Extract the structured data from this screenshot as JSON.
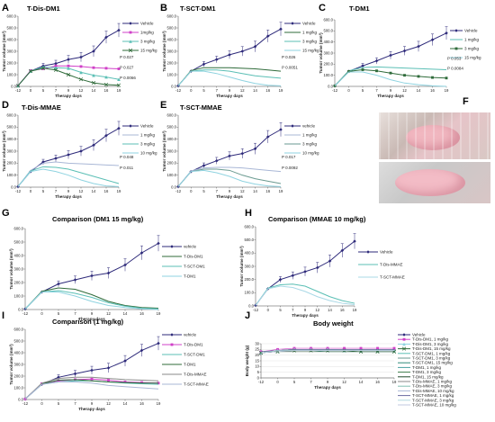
{
  "panels": [
    {
      "id": "A",
      "title": "T-Dis-DM1",
      "box": "A",
      "ylabel": "Tumor volume (mm³)",
      "xlabel": "Therapy days"
    },
    {
      "id": "B",
      "title": "T-SCT-DM1",
      "box": "B",
      "ylabel": "Tumor volume (mm³)",
      "xlabel": "Therapy days"
    },
    {
      "id": "C",
      "title": "T-DM1",
      "box": "C",
      "ylabel": "Tumor volume (mm³)",
      "xlabel": "Therapy days"
    },
    {
      "id": "D",
      "title": "T-Dis-MMAE",
      "box": "D",
      "ylabel": "Tumor volume (mm³)",
      "xlabel": "Therapy days"
    },
    {
      "id": "E",
      "title": "T-SCT-MMAE",
      "box": "E",
      "ylabel": "Tumor volume (mm³)",
      "xlabel": "Therapy days"
    },
    {
      "id": "G",
      "title": "Comparison (DM1 15 mg/kg)",
      "box": "G",
      "ylabel": "Tumor volume (mm³)",
      "xlabel": "Therapy days"
    },
    {
      "id": "H",
      "title": "Comparison (MMAE 10 mg/kg)",
      "box": "H",
      "ylabel": "Tumor volume (mm³)",
      "xlabel": "Therapy days"
    },
    {
      "id": "I",
      "title": "Comparison (1 mg/kg)",
      "box": "I",
      "ylabel": "Tumor volume (mm³)",
      "xlabel": "Therapy days"
    },
    {
      "id": "J",
      "title": "Body weight",
      "box": "J",
      "ylabel": "Body weight (g)",
      "xlabel": "Therapy days"
    }
  ],
  "photo_label": "F",
  "chart_data": [
    {
      "id": "A",
      "type": "line",
      "x": [
        -12,
        0,
        5,
        7,
        9,
        12,
        14,
        16,
        19
      ],
      "ylim": [
        0,
        600
      ],
      "yticks": [
        0,
        100,
        200,
        300,
        400,
        500,
        600
      ],
      "series": [
        {
          "name": "Vehicle",
          "color": "#2e2a7a",
          "marker": "diamond",
          "values": [
            5,
            130,
            175,
            195,
            230,
            250,
            300,
            420,
            480
          ]
        },
        {
          "name": "1mg/kg",
          "color": "#d040c8",
          "marker": "square",
          "values": [
            5,
            135,
            150,
            175,
            175,
            170,
            160,
            155,
            150
          ]
        },
        {
          "name": "3 mg/kg",
          "color": "#5bbfb5",
          "marker": "triangle",
          "values": [
            5,
            130,
            165,
            160,
            155,
            120,
            95,
            80,
            60
          ]
        },
        {
          "name": "15 mg/kg",
          "color": "#2f6b3a",
          "marker": "x",
          "values": [
            5,
            130,
            155,
            140,
            100,
            60,
            30,
            15,
            10
          ]
        }
      ],
      "annotations": [
        "P 0.027",
        "P 0.027",
        "P 0.0066"
      ]
    },
    {
      "id": "B",
      "type": "line",
      "x": [
        -12,
        0,
        5,
        7,
        9,
        12,
        14,
        16,
        19
      ],
      "ylim": [
        0,
        600
      ],
      "yticks": [
        0,
        100,
        200,
        300,
        400,
        500,
        600
      ],
      "series": [
        {
          "name": "Vehicle",
          "color": "#2e2a7a",
          "marker": "diamond",
          "values": [
            5,
            130,
            190,
            230,
            270,
            300,
            340,
            430,
            490
          ]
        },
        {
          "name": "1 mg/kg",
          "color": "#2f6b3a",
          "marker": "none",
          "values": [
            5,
            135,
            160,
            160,
            160,
            155,
            150,
            140,
            130
          ]
        },
        {
          "name": "3 mg/kg",
          "color": "#5bbfb5",
          "marker": "none",
          "values": [
            5,
            130,
            140,
            140,
            130,
            110,
            90,
            80,
            70
          ]
        },
        {
          "name": "15 mg/kg",
          "color": "#8fd3e0",
          "marker": "none",
          "values": [
            5,
            130,
            130,
            110,
            80,
            50,
            25,
            10,
            5
          ]
        }
      ],
      "annotations": [
        "P 0.026",
        "P 0.0051"
      ]
    },
    {
      "id": "C",
      "type": "line",
      "x": [
        -12,
        0,
        5,
        7,
        9,
        12,
        14,
        16,
        19
      ],
      "ylim": [
        0,
        600
      ],
      "yticks": [
        0,
        100,
        200,
        300,
        400,
        500,
        600
      ],
      "series": [
        {
          "name": "Vehicle",
          "color": "#2e2a7a",
          "marker": "diamond",
          "values": [
            5,
            135,
            185,
            230,
            280,
            320,
            360,
            420,
            480
          ]
        },
        {
          "name": "1 mg/kg",
          "color": "#5bbfb5",
          "marker": "none",
          "values": [
            5,
            140,
            170,
            175,
            170,
            165,
            160,
            155,
            150
          ]
        },
        {
          "name": "3 mg/kg",
          "color": "#2f6b3a",
          "marker": "square",
          "values": [
            5,
            135,
            150,
            140,
            120,
            100,
            90,
            80,
            75
          ]
        },
        {
          "name": "15 mg/kg",
          "color": "#8fd3e0",
          "marker": "none",
          "values": [
            5,
            130,
            130,
            100,
            60,
            30,
            15,
            5,
            0
          ]
        }
      ],
      "annotations": [
        "P 0.053",
        "P 0.0084"
      ]
    },
    {
      "id": "D",
      "type": "line",
      "x": [
        -12,
        0,
        5,
        7,
        9,
        12,
        14,
        16,
        19
      ],
      "ylim": [
        0,
        600
      ],
      "yticks": [
        0,
        100,
        200,
        300,
        400,
        500,
        600
      ],
      "series": [
        {
          "name": "Vehicle",
          "color": "#2e2a7a",
          "marker": "diamond",
          "values": [
            5,
            130,
            210,
            240,
            270,
            300,
            350,
            430,
            490
          ]
        },
        {
          "name": "1 mg/kg",
          "color": "#a9b7d6",
          "marker": "none",
          "values": [
            5,
            140,
            200,
            210,
            200,
            195,
            190,
            185,
            180
          ]
        },
        {
          "name": "3 mg/kg",
          "color": "#5bbfb5",
          "marker": "none",
          "values": [
            5,
            135,
            170,
            165,
            150,
            120,
            90,
            60,
            30
          ]
        },
        {
          "name": "10 mg/kg",
          "color": "#8fd3e0",
          "marker": "none",
          "values": [
            5,
            130,
            150,
            130,
            100,
            60,
            30,
            10,
            5
          ]
        }
      ],
      "annotations": [
        "P 0.048",
        "P 0.011"
      ]
    },
    {
      "id": "E",
      "type": "line",
      "x": [
        -12,
        0,
        5,
        7,
        9,
        12,
        14,
        16,
        19
      ],
      "ylim": [
        0,
        600
      ],
      "yticks": [
        0,
        100,
        200,
        300,
        400,
        500,
        600
      ],
      "series": [
        {
          "name": "vehicle",
          "color": "#2e2a7a",
          "marker": "diamond",
          "values": [
            5,
            130,
            180,
            220,
            260,
            280,
            320,
            420,
            480
          ]
        },
        {
          "name": "1 mg/kg",
          "color": "#a9b7d6",
          "marker": "none",
          "values": [
            5,
            135,
            160,
            165,
            165,
            160,
            150,
            140,
            130
          ]
        },
        {
          "name": "3 mg/kg",
          "color": "#6a9a90",
          "marker": "none",
          "values": [
            5,
            130,
            150,
            150,
            140,
            100,
            70,
            50,
            30
          ]
        },
        {
          "name": "10 mg/kg",
          "color": "#8fd3e0",
          "marker": "none",
          "values": [
            5,
            130,
            140,
            120,
            90,
            50,
            25,
            10,
            5
          ]
        }
      ],
      "annotations": [
        "P 0.017",
        "P 0.0092"
      ]
    },
    {
      "id": "G",
      "type": "line",
      "x": [
        -12,
        0,
        5,
        7,
        9,
        12,
        14,
        16,
        19
      ],
      "ylim": [
        0,
        600
      ],
      "yticks": [
        0,
        100,
        200,
        300,
        400,
        500,
        600
      ],
      "series": [
        {
          "name": "vehicle",
          "color": "#2e2a7a",
          "marker": "diamond",
          "values": [
            5,
            130,
            190,
            220,
            250,
            270,
            330,
            420,
            490
          ]
        },
        {
          "name": "T-Dis-DM1",
          "color": "#2f6b3a",
          "marker": "none",
          "values": [
            5,
            135,
            160,
            150,
            110,
            60,
            30,
            15,
            10
          ]
        },
        {
          "name": "T-SCT-DM1",
          "color": "#5bbfb5",
          "marker": "none",
          "values": [
            5,
            130,
            140,
            120,
            90,
            50,
            25,
            10,
            5
          ]
        },
        {
          "name": "T-DM1",
          "color": "#8fd3e0",
          "marker": "none",
          "values": [
            5,
            130,
            130,
            100,
            60,
            30,
            15,
            5,
            0
          ]
        }
      ]
    },
    {
      "id": "H",
      "type": "line",
      "x": [
        -12,
        0,
        5,
        7,
        9,
        12,
        14,
        16,
        19
      ],
      "ylim": [
        0,
        600
      ],
      "yticks": [
        0,
        100,
        200,
        300,
        400,
        500,
        600
      ],
      "series": [
        {
          "name": "Vehicle",
          "color": "#2e2a7a",
          "marker": "diamond",
          "values": [
            5,
            130,
            200,
            230,
            260,
            290,
            340,
            420,
            490
          ]
        },
        {
          "name": "T-Dis-MMAE",
          "color": "#5bbfb5",
          "marker": "none",
          "values": [
            5,
            135,
            160,
            165,
            150,
            110,
            70,
            40,
            20
          ]
        },
        {
          "name": "T-SCT-MMAE",
          "color": "#a9d8e6",
          "marker": "none",
          "values": [
            5,
            130,
            150,
            140,
            110,
            70,
            40,
            20,
            10
          ]
        }
      ]
    },
    {
      "id": "I",
      "type": "line",
      "x": [
        -12,
        0,
        5,
        7,
        9,
        12,
        14,
        16,
        19
      ],
      "ylim": [
        0,
        600
      ],
      "yticks": [
        0,
        100,
        200,
        300,
        400,
        500,
        600
      ],
      "series": [
        {
          "name": "vehicle",
          "color": "#2e2a7a",
          "marker": "diamond",
          "values": [
            5,
            130,
            190,
            220,
            250,
            270,
            330,
            420,
            480
          ]
        },
        {
          "name": "T-Dis-DM1",
          "color": "#d040c8",
          "marker": "square",
          "values": [
            5,
            135,
            160,
            170,
            175,
            165,
            150,
            145,
            140
          ]
        },
        {
          "name": "T-SCT-DM1",
          "color": "#5bbfb5",
          "marker": "none",
          "values": [
            5,
            130,
            150,
            160,
            160,
            150,
            140,
            135,
            130
          ]
        },
        {
          "name": "T-DM1",
          "color": "#2f6b3a",
          "marker": "none",
          "values": [
            5,
            135,
            165,
            170,
            160,
            150,
            145,
            140,
            140
          ]
        },
        {
          "name": "T-Dis-MMAE",
          "color": "#8a8a8a",
          "marker": "none",
          "values": [
            5,
            140,
            180,
            190,
            190,
            180,
            170,
            165,
            160
          ]
        },
        {
          "name": "T-SCT-MMAE",
          "color": "#a9b7d6",
          "marker": "none",
          "values": [
            5,
            130,
            150,
            150,
            140,
            120,
            110,
            100,
            90
          ]
        }
      ]
    },
    {
      "id": "J",
      "type": "line",
      "x": [
        -12,
        0,
        5,
        7,
        9,
        12,
        14,
        16,
        19
      ],
      "ylim": [
        0,
        30
      ],
      "yticks": [
        0,
        5,
        10,
        15,
        20,
        25,
        30
      ],
      "series": [
        {
          "name": "Vehicle",
          "color": "#2e2a7a",
          "marker": "diamond",
          "values": [
            22,
            24,
            25,
            25,
            25,
            25,
            25,
            25,
            25
          ]
        },
        {
          "name": "T-Dis-DM1, 1 mg/kg",
          "color": "#d040c8",
          "marker": "square",
          "values": [
            23,
            25,
            26,
            26,
            26,
            26,
            26,
            26,
            26
          ]
        },
        {
          "name": "T-Dis-DM1, 3 mg/kg",
          "color": "#8fd3e0",
          "marker": "triangle",
          "values": [
            22,
            24,
            25,
            25,
            25,
            24,
            24,
            24,
            24
          ]
        },
        {
          "name": "T-Dis-DM1, 15 mg/kg",
          "color": "#2f6b3a",
          "marker": "x",
          "values": [
            22,
            23,
            24,
            24,
            24,
            24,
            23,
            23,
            23
          ]
        },
        {
          "name": "T-SCT-DM1, 1 mg/kg",
          "color": "#5bbfb5",
          "marker": "none",
          "values": [
            23,
            24,
            25,
            25,
            25,
            25,
            25,
            25,
            25
          ]
        },
        {
          "name": "T-SCT-DM1, 3 mg/kg",
          "color": "#6a9a90",
          "marker": "none",
          "values": [
            22,
            24,
            24,
            24,
            24,
            24,
            24,
            24,
            24
          ]
        },
        {
          "name": "T-SCT-DM1, 15 mg/kg",
          "color": "#2f8a7a",
          "marker": "none",
          "values": [
            22,
            23,
            24,
            24,
            23,
            23,
            23,
            23,
            23
          ]
        },
        {
          "name": "T-DM1, 1 mg/kg",
          "color": "#4aa0a0",
          "marker": "none",
          "values": [
            23,
            24,
            25,
            25,
            25,
            25,
            25,
            25,
            25
          ]
        },
        {
          "name": "T-DM1, 3 mg/kg",
          "color": "#3b7a4a",
          "marker": "none",
          "values": [
            22,
            24,
            24,
            24,
            24,
            24,
            24,
            24,
            24
          ]
        },
        {
          "name": "T-DM1, 15 mg/kg",
          "color": "#1f4a2a",
          "marker": "none",
          "values": [
            22,
            23,
            23,
            23,
            23,
            23,
            23,
            23,
            23
          ]
        },
        {
          "name": "T-Dis-MMAE, 1 mg/kg",
          "color": "#8a8a8a",
          "marker": "none",
          "values": [
            23,
            24,
            25,
            25,
            25,
            25,
            25,
            25,
            25
          ]
        },
        {
          "name": "T-Dis-MMAE, 3 mg/kg",
          "color": "#7fbfb0",
          "marker": "none",
          "values": [
            22,
            24,
            24,
            24,
            24,
            24,
            24,
            24,
            24
          ]
        },
        {
          "name": "T-Dis-MMAE, 10 mg/kg",
          "color": "#a9b7d6",
          "marker": "none",
          "values": [
            22,
            23,
            24,
            24,
            24,
            24,
            24,
            24,
            24
          ]
        },
        {
          "name": "T-SCT-MMAE, 1 mg/kg",
          "color": "#6a6aa0",
          "marker": "none",
          "values": [
            23,
            24,
            25,
            25,
            25,
            25,
            25,
            25,
            25
          ]
        },
        {
          "name": "T-SCT-MMAE, 3 mg/kg",
          "color": "#b0d8e0",
          "marker": "none",
          "values": [
            22,
            24,
            24,
            24,
            24,
            24,
            24,
            24,
            24
          ]
        },
        {
          "name": "T-SCT-MMAE, 10 mg/kg",
          "color": "#c0c8e0",
          "marker": "none",
          "values": [
            22,
            23,
            24,
            24,
            24,
            24,
            24,
            24,
            24
          ]
        }
      ]
    }
  ]
}
